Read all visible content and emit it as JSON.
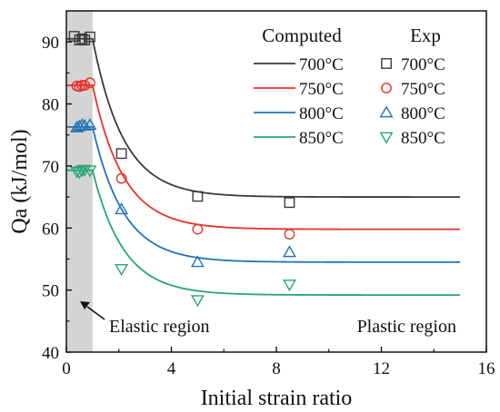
{
  "chart_data": {
    "type": "line",
    "title": "",
    "xlabel": "Initial strain ratio",
    "ylabel": "Qa (kJ/mol)",
    "xlim": [
      0,
      16
    ],
    "ylim": [
      40,
      95
    ],
    "xticks": [
      0,
      4,
      8,
      12,
      16
    ],
    "yticks": [
      40,
      50,
      60,
      70,
      80,
      90
    ],
    "grid": false,
    "legend": {
      "placement": "top-right",
      "computed_header": "Computed",
      "exp_header": "Exp"
    },
    "shaded_region": {
      "x": [
        0,
        1
      ],
      "color": "#d4d4d4"
    },
    "annotations": {
      "elastic": "Elastic region",
      "plastic": "Plastic region"
    },
    "series": [
      {
        "name": "700°C",
        "color": "#3a3a3a",
        "marker": "square",
        "computed": {
          "plateau_end": 1.0,
          "initial": 90.5,
          "final": 65.0,
          "decay": 0.85
        },
        "experimental": {
          "x": [
            0.3,
            0.5,
            0.6,
            0.7,
            0.9,
            2.1,
            5.0,
            8.5
          ],
          "y": [
            90.9,
            90.3,
            90.5,
            90.3,
            90.8,
            72.0,
            65.1,
            64.1
          ]
        }
      },
      {
        "name": "750°C",
        "color": "#e8322b",
        "marker": "circle",
        "computed": {
          "plateau_end": 1.0,
          "initial": 83.0,
          "final": 59.8,
          "decay": 0.85
        },
        "experimental": {
          "x": [
            0.4,
            0.5,
            0.6,
            0.7,
            0.9,
            2.1,
            5.0,
            8.5
          ],
          "y": [
            82.9,
            82.8,
            83.0,
            83.0,
            83.4,
            68.0,
            59.8,
            59.0
          ]
        }
      },
      {
        "name": "800°C",
        "color": "#2273b5",
        "marker": "triangle-up",
        "computed": {
          "plateau_end": 1.0,
          "initial": 76.3,
          "final": 54.5,
          "decay": 0.85
        },
        "experimental": {
          "x": [
            0.4,
            0.5,
            0.6,
            0.7,
            0.9,
            2.1,
            5.0,
            8.5
          ],
          "y": [
            76.2,
            76.4,
            76.6,
            76.5,
            76.6,
            63.0,
            54.5,
            56.1
          ]
        }
      },
      {
        "name": "850°C",
        "color": "#2aa572",
        "marker": "triangle-down",
        "computed": {
          "plateau_end": 1.0,
          "initial": 69.3,
          "final": 49.2,
          "decay": 0.85
        },
        "experimental": {
          "x": [
            0.4,
            0.5,
            0.6,
            0.7,
            0.9,
            2.1,
            5.0,
            8.5
          ],
          "y": [
            69.1,
            69.0,
            69.3,
            69.4,
            69.3,
            53.4,
            48.4,
            50.9
          ]
        }
      }
    ]
  }
}
